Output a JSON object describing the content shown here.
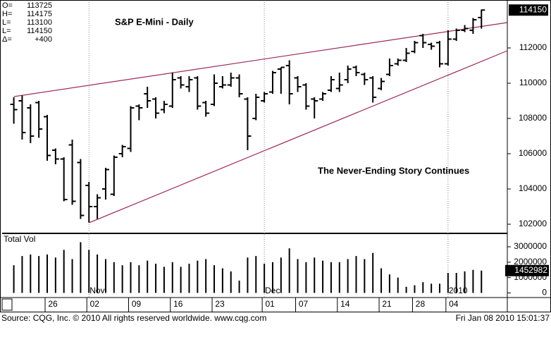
{
  "chart_data": [
    {
      "type": "ohlc",
      "title": "S&P E-Mini - Daily",
      "annotation": "The Never-Ending Story Continues",
      "header_labels": [
        "O=",
        "H=",
        "L=",
        "L=",
        "Δ="
      ],
      "change": 400,
      "change_label": "+400",
      "categories": [
        null,
        null,
        null,
        null,
        "26",
        null,
        null,
        null,
        null,
        "02",
        null,
        null,
        null,
        null,
        "09",
        null,
        null,
        null,
        null,
        "16",
        null,
        null,
        null,
        null,
        "23",
        null,
        null,
        null,
        null,
        null,
        "01",
        null,
        null,
        null,
        "07",
        null,
        null,
        null,
        null,
        "14",
        null,
        null,
        null,
        null,
        "21",
        null,
        null,
        null,
        "28",
        null,
        null,
        null,
        "04",
        null,
        null,
        null,
        null
      ],
      "month_labels": [
        null,
        null,
        null,
        null,
        null,
        null,
        null,
        null,
        null,
        "Nov",
        null,
        null,
        null,
        null,
        null,
        null,
        null,
        null,
        null,
        null,
        null,
        null,
        null,
        null,
        null,
        null,
        null,
        null,
        null,
        null,
        "Dec",
        null,
        null,
        null,
        null,
        null,
        null,
        null,
        null,
        null,
        null,
        null,
        null,
        null,
        null,
        null,
        null,
        null,
        null,
        null,
        null,
        null,
        "2010",
        null,
        null,
        null,
        null
      ],
      "open": [
        108800,
        109000,
        108600,
        108900,
        108100,
        106200,
        105700,
        106500,
        105500,
        104200,
        103000,
        104000,
        103700,
        106000,
        106300,
        108700,
        109400,
        109100,
        108500,
        108700,
        110300,
        109800,
        110300,
        108900,
        108800,
        109800,
        109900,
        110300,
        109100,
        108000,
        109000,
        109500,
        110800,
        111000,
        110300,
        109900,
        109100,
        109100,
        109600,
        109700,
        110200,
        110900,
        110500,
        110300,
        109700,
        110500,
        111100,
        111300,
        111800,
        112700,
        112200,
        112300,
        111100,
        112500,
        113000,
        113000,
        113725
      ],
      "high": [
        109200,
        109300,
        108800,
        109000,
        108200,
        106300,
        105800,
        106800,
        105700,
        104400,
        103700,
        105200,
        105900,
        106500,
        108700,
        108800,
        109800,
        109200,
        109000,
        110600,
        110400,
        110400,
        110400,
        109000,
        110500,
        110400,
        110600,
        110500,
        109200,
        109400,
        109500,
        110700,
        110900,
        111300,
        110400,
        110000,
        109200,
        109500,
        110400,
        110600,
        111000,
        111000,
        110600,
        110400,
        110300,
        111400,
        111400,
        112000,
        112400,
        112800,
        112300,
        112400,
        113000,
        113100,
        113300,
        113700,
        114175
      ],
      "low": [
        107700,
        106800,
        106600,
        106900,
        105600,
        105400,
        103300,
        103100,
        102300,
        102100,
        102300,
        103400,
        103600,
        105800,
        106100,
        107900,
        108600,
        108000,
        108300,
        108600,
        109700,
        109500,
        108500,
        108100,
        108700,
        109700,
        109800,
        109200,
        106200,
        107900,
        108900,
        109400,
        109400,
        108800,
        109500,
        108500,
        108000,
        109000,
        109500,
        109500,
        110000,
        110400,
        109900,
        108900,
        109600,
        110400,
        111000,
        111200,
        111700,
        112000,
        111900,
        110900,
        111000,
        112400,
        112900,
        112800,
        113100
      ],
      "close": [
        108500,
        107200,
        107000,
        107400,
        105900,
        105700,
        103400,
        103300,
        102500,
        103000,
        103500,
        105100,
        105800,
        106400,
        108600,
        108600,
        109000,
        108300,
        108800,
        110200,
        109900,
        110200,
        108700,
        108300,
        110000,
        109900,
        110300,
        109400,
        107000,
        109200,
        109400,
        110600,
        110900,
        109400,
        109800,
        108700,
        109000,
        109400,
        110200,
        109900,
        110800,
        110600,
        110200,
        109200,
        110100,
        111000,
        111300,
        111700,
        112300,
        112300,
        112100,
        111100,
        112500,
        113000,
        113100,
        113600,
        114150
      ],
      "color": "#000000",
      "trend_color": "#9c2b58",
      "trendlines": [
        {
          "x": [
            0,
            59.1
          ],
          "y": [
            109240,
            113440
          ]
        },
        {
          "x": [
            9,
            59.1
          ],
          "y": [
            102080,
            111840
          ]
        }
      ],
      "xlim": [
        -1.4,
        59.1
      ],
      "ylim": [
        101520,
        114600
      ],
      "yticks": [
        102000,
        104000,
        106000,
        108000,
        110000,
        112000
      ]
    },
    {
      "type": "bar",
      "title": "Total Vol",
      "color": "#000000",
      "values": [
        1800000,
        2400000,
        2500000,
        2400000,
        2500000,
        2300000,
        2800000,
        2200000,
        3300000,
        2800000,
        2500000,
        2200000,
        2000000,
        1800000,
        2000000,
        1800000,
        2100000,
        1900000,
        1700000,
        2000000,
        1700000,
        1900000,
        2100000,
        2200000,
        1800000,
        1600000,
        1400000,
        800000,
        2300000,
        2400000,
        1900000,
        2000000,
        2300000,
        2900000,
        2200000,
        2000000,
        2300000,
        2100000,
        2000000,
        2000000,
        2200000,
        2400000,
        2200000,
        2600000,
        1600000,
        1200000,
        1000000,
        400000,
        500000,
        700000,
        600000,
        600000,
        1300000,
        1300000,
        1400000,
        1500000,
        1452982
      ],
      "ylim": [
        -300000,
        3780000
      ],
      "yticks": [
        0,
        1000000,
        2000000,
        3000000
      ]
    }
  ],
  "footer": {
    "source": "Source: CQG, Inc. © 2010 All rights reserved worldwide. www.cqg.com",
    "timestamp": "Fri Jan 08 2010 15:01:37"
  }
}
